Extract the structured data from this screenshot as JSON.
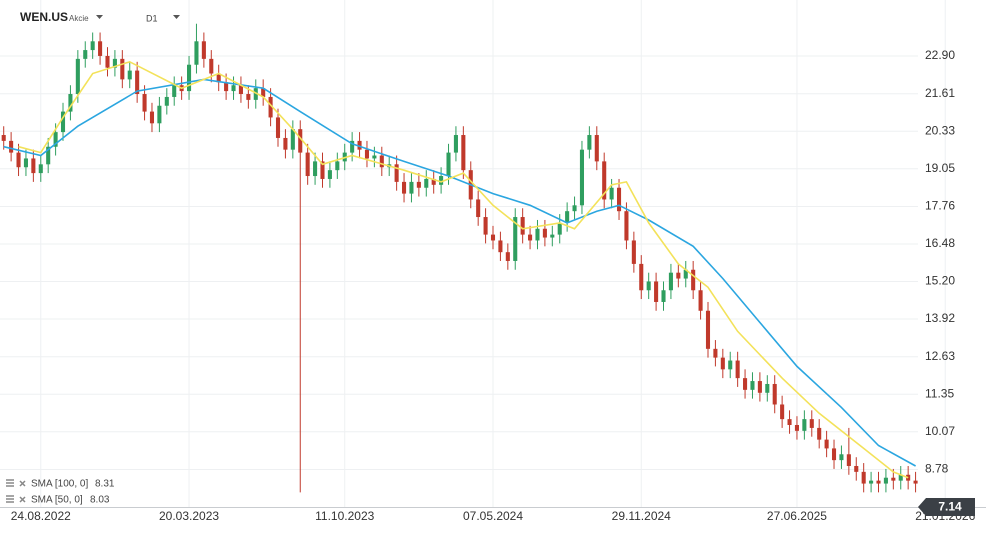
{
  "header": {
    "symbol": "WEN.US",
    "kind": "Akcie",
    "timeframe": "D1"
  },
  "chart_data": {
    "type": "candlestick",
    "categories": [
      null,
      null,
      null,
      null,
      null,
      "24.08.2022",
      null,
      null,
      null,
      null,
      null,
      null,
      null,
      null,
      null,
      null,
      null,
      null,
      null,
      null,
      null,
      null,
      null,
      null,
      null,
      "20.03.2023",
      null,
      null,
      null,
      null,
      null,
      null,
      null,
      null,
      null,
      null,
      null,
      null,
      null,
      null,
      null,
      null,
      null,
      null,
      null,
      null,
      "11.10.2023",
      null,
      null,
      null,
      null,
      null,
      null,
      null,
      null,
      null,
      null,
      null,
      null,
      null,
      null,
      null,
      null,
      null,
      null,
      null,
      "07.05.2024",
      null,
      null,
      null,
      null,
      null,
      null,
      null,
      null,
      null,
      null,
      null,
      null,
      null,
      null,
      null,
      null,
      null,
      null,
      null,
      "29.11.2024",
      null,
      null,
      null,
      null,
      null,
      null,
      null,
      null,
      null,
      null,
      null,
      null,
      null,
      null,
      null,
      null,
      null,
      null,
      null,
      null,
      "27.06.2025",
      null,
      null,
      null,
      null,
      null,
      null,
      null,
      null,
      null,
      null,
      null,
      null,
      null,
      null,
      null,
      null,
      null,
      null,
      null,
      "21.01.2026",
      null,
      null,
      null,
      null,
      null
    ],
    "open": [
      20.2,
      20.0,
      19.6,
      19.1,
      19.4,
      18.9,
      19.2,
      19.8,
      20.3,
      21.0,
      21.6,
      22.8,
      23.1,
      23.4,
      22.9,
      22.5,
      22.8,
      22.1,
      22.4,
      21.6,
      21.0,
      20.6,
      21.2,
      21.5,
      21.9,
      21.7,
      22.6,
      23.4,
      22.8,
      22.3,
      22.0,
      21.7,
      21.9,
      21.6,
      21.4,
      21.8,
      21.5,
      20.8,
      20.1,
      19.7,
      20.4,
      19.6,
      18.8,
      19.3,
      18.7,
      19.0,
      19.3,
      19.6,
      20.0,
      19.7,
      19.4,
      19.5,
      19.1,
      19.2,
      18.6,
      18.2,
      18.6,
      18.4,
      18.7,
      18.5,
      18.8,
      19.6,
      20.2,
      19.0,
      18.0,
      17.4,
      16.8,
      16.6,
      16.2,
      15.9,
      17.4,
      16.8,
      16.6,
      17.0,
      16.7,
      16.8,
      17.2,
      17.6,
      17.8,
      19.7,
      20.2,
      19.3,
      18.0,
      18.4,
      17.6,
      16.6,
      15.8,
      14.9,
      15.2,
      14.5,
      14.9,
      15.5,
      15.3,
      15.6,
      14.9,
      14.2,
      12.9,
      12.6,
      12.2,
      12.5,
      11.9,
      11.5,
      11.8,
      11.4,
      11.7,
      11.0,
      10.5,
      10.3,
      10.1,
      10.5,
      10.2,
      9.8,
      9.5,
      9.1,
      9.3,
      8.9,
      8.7,
      8.3,
      8.4,
      8.3,
      8.5,
      8.4,
      8.6,
      8.4,
      null,
      null,
      null,
      null,
      null,
      null,
      null,
      null,
      null
    ],
    "high": [
      20.5,
      20.3,
      19.9,
      19.7,
      19.7,
      19.5,
      20.1,
      20.6,
      21.3,
      21.9,
      23.1,
      23.4,
      23.7,
      23.7,
      23.2,
      23.1,
      23.1,
      22.7,
      22.7,
      21.9,
      21.3,
      21.5,
      21.8,
      22.2,
      22.2,
      22.9,
      24.0,
      23.7,
      23.1,
      22.6,
      22.3,
      22.2,
      22.2,
      21.9,
      22.1,
      22.1,
      21.8,
      21.1,
      20.4,
      20.7,
      20.7,
      19.9,
      19.6,
      19.6,
      19.3,
      19.6,
      19.9,
      20.3,
      20.3,
      20.0,
      19.8,
      19.8,
      19.5,
      19.5,
      18.9,
      18.9,
      18.9,
      19.0,
      19.0,
      19.1,
      19.9,
      20.5,
      20.5,
      19.3,
      18.3,
      17.7,
      17.1,
      16.9,
      16.5,
      17.7,
      17.7,
      17.1,
      17.3,
      17.3,
      17.1,
      17.5,
      17.9,
      18.1,
      20.0,
      20.5,
      20.5,
      19.6,
      18.7,
      18.7,
      17.9,
      16.9,
      16.1,
      15.5,
      15.5,
      15.2,
      15.8,
      15.8,
      15.9,
      15.9,
      15.2,
      14.5,
      13.2,
      12.9,
      12.8,
      12.8,
      12.2,
      12.1,
      12.1,
      12.0,
      12.0,
      11.3,
      10.8,
      10.6,
      10.8,
      10.8,
      10.5,
      10.1,
      9.8,
      9.6,
      10.2,
      9.2,
      9.0,
      8.7,
      8.7,
      8.8,
      8.8,
      8.9,
      8.9,
      8.7,
      null,
      null,
      null,
      null,
      null,
      null,
      null,
      null,
      null
    ],
    "low": [
      19.7,
      19.3,
      18.8,
      18.8,
      18.6,
      18.6,
      18.9,
      19.5,
      20.0,
      20.7,
      21.3,
      22.5,
      22.8,
      22.6,
      22.2,
      22.2,
      21.8,
      21.8,
      21.3,
      20.7,
      20.3,
      20.3,
      20.9,
      21.2,
      21.4,
      21.4,
      22.3,
      22.5,
      22.0,
      21.7,
      21.4,
      21.4,
      21.3,
      21.1,
      21.1,
      21.2,
      20.5,
      19.8,
      19.4,
      19.4,
      8.0,
      18.5,
      18.5,
      18.4,
      18.4,
      18.7,
      19.0,
      19.3,
      19.4,
      19.1,
      19.1,
      18.8,
      18.8,
      18.3,
      17.9,
      17.9,
      18.1,
      18.1,
      18.2,
      18.2,
      18.5,
      19.3,
      18.7,
      17.7,
      17.1,
      16.5,
      16.3,
      15.9,
      15.6,
      15.6,
      16.5,
      16.3,
      16.3,
      16.4,
      16.4,
      16.5,
      16.9,
      17.3,
      17.5,
      19.4,
      19.0,
      17.7,
      17.7,
      17.3,
      16.3,
      15.5,
      14.6,
      14.6,
      14.2,
      14.2,
      14.6,
      15.0,
      15.0,
      14.6,
      13.9,
      12.6,
      12.3,
      11.9,
      11.9,
      11.6,
      11.2,
      11.2,
      11.1,
      11.1,
      10.7,
      10.2,
      10.0,
      9.8,
      9.8,
      9.9,
      9.5,
      9.2,
      8.8,
      8.8,
      8.6,
      8.4,
      8.0,
      8.0,
      8.0,
      8.0,
      8.1,
      8.1,
      8.1,
      8.0,
      null,
      null,
      null,
      null,
      null,
      null,
      null,
      null,
      null
    ],
    "close": [
      20.0,
      19.6,
      19.1,
      19.4,
      18.9,
      19.2,
      19.8,
      20.3,
      21.0,
      21.6,
      22.8,
      23.1,
      23.4,
      22.9,
      22.5,
      22.8,
      22.1,
      22.4,
      21.6,
      21.0,
      20.6,
      21.2,
      21.5,
      21.9,
      21.7,
      22.6,
      23.4,
      22.8,
      22.3,
      22.0,
      21.7,
      21.9,
      21.6,
      21.4,
      21.8,
      21.5,
      20.8,
      20.1,
      19.7,
      20.4,
      19.6,
      18.8,
      19.3,
      18.7,
      19.0,
      19.3,
      19.6,
      20.0,
      19.7,
      19.4,
      19.5,
      19.1,
      19.2,
      18.6,
      18.2,
      18.6,
      18.4,
      18.7,
      18.5,
      18.8,
      19.6,
      20.2,
      19.0,
      18.0,
      17.4,
      16.8,
      16.6,
      16.2,
      15.9,
      17.4,
      16.8,
      16.6,
      17.0,
      16.7,
      16.8,
      17.2,
      17.6,
      17.8,
      19.7,
      20.2,
      19.3,
      18.0,
      18.4,
      17.6,
      16.6,
      15.8,
      14.9,
      15.2,
      14.5,
      14.9,
      15.5,
      15.3,
      15.6,
      14.9,
      14.2,
      12.9,
      12.6,
      12.2,
      12.5,
      11.9,
      11.5,
      11.8,
      11.4,
      11.7,
      11.0,
      10.5,
      10.3,
      10.1,
      10.5,
      10.2,
      9.8,
      9.5,
      9.1,
      9.3,
      8.9,
      8.7,
      8.3,
      8.4,
      8.3,
      8.5,
      8.4,
      8.6,
      8.4,
      8.3,
      null,
      null,
      null,
      null,
      null,
      null,
      null,
      null,
      null
    ],
    "up_color": "#2f9e5f",
    "down_color": "#c0392b",
    "ylim": [
      7.5,
      24.81
    ],
    "yticks": [
      {
        "value": 22.9,
        "label": "22.90"
      },
      21.61,
      20.33,
      19.05,
      17.76,
      16.48,
      {
        "value": 15.2,
        "label": "15.20"
      },
      13.92,
      12.63,
      11.35,
      10.07,
      8.78
    ],
    "grid": true,
    "overlays": [
      {
        "name": "SMA [100, 0]",
        "color": "#2ba6e0",
        "last": 8.31,
        "x": [
          0,
          5,
          10,
          18,
          27,
          35,
          40,
          47,
          54,
          60,
          66,
          71,
          76,
          80,
          83,
          87,
          93,
          97,
          102,
          107,
          113,
          118,
          123
        ],
        "values": [
          19.8,
          19.5,
          20.5,
          21.7,
          22.1,
          21.8,
          21.0,
          19.9,
          19.3,
          18.8,
          18.2,
          17.8,
          17.2,
          17.6,
          17.8,
          17.3,
          16.4,
          15.3,
          13.8,
          12.3,
          10.9,
          9.6,
          8.9
        ]
      },
      {
        "name": "SMA [50, 0]",
        "color": "#f3e25a",
        "last": 8.03,
        "x": [
          2,
          5,
          8,
          12,
          17,
          24,
          29,
          35,
          39,
          43,
          47,
          54,
          59,
          62,
          66,
          70,
          75,
          77,
          82,
          84,
          87,
          91,
          95,
          99,
          105,
          110,
          116,
          120,
          122
        ],
        "values": [
          19.8,
          19.6,
          20.8,
          22.3,
          22.7,
          21.8,
          22.3,
          21.5,
          20.4,
          19.2,
          19.5,
          19.0,
          18.6,
          18.9,
          17.8,
          17.0,
          17.2,
          17.0,
          18.5,
          18.6,
          17.2,
          15.8,
          15.0,
          13.5,
          11.9,
          10.7,
          9.5,
          8.7,
          8.5
        ]
      }
    ],
    "last_price": 7.14
  }
}
